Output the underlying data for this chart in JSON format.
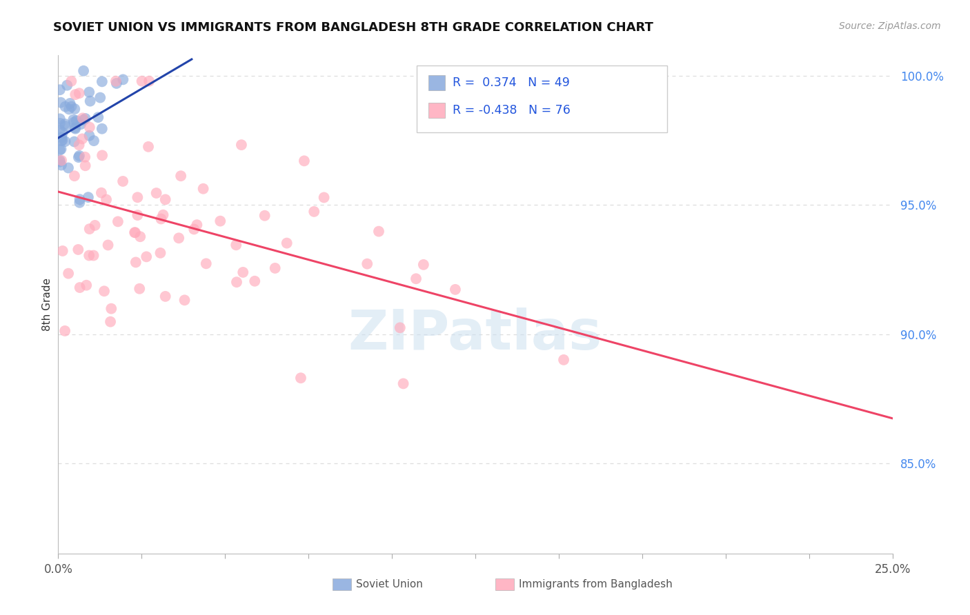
{
  "title": "SOVIET UNION VS IMMIGRANTS FROM BANGLADESH 8TH GRADE CORRELATION CHART",
  "source": "Source: ZipAtlas.com",
  "ylabel": "8th Grade",
  "xlim": [
    0.0,
    0.25
  ],
  "ylim": [
    0.815,
    1.008
  ],
  "xticks": [
    0.0,
    0.025,
    0.05,
    0.075,
    0.1,
    0.125,
    0.15,
    0.175,
    0.2,
    0.225,
    0.25
  ],
  "xticklabels_show": [
    "0.0%",
    "25.0%"
  ],
  "yticks_right": [
    0.85,
    0.9,
    0.95,
    1.0
  ],
  "yticklabels_right": [
    "85.0%",
    "90.0%",
    "95.0%",
    "100.0%"
  ],
  "grid_color": "#dddddd",
  "background_color": "#ffffff",
  "soviet_color": "#88aadd",
  "soviet_line_color": "#2244aa",
  "bangladesh_color": "#ffaabb",
  "bangladesh_line_color": "#ee4466",
  "R_soviet": 0.374,
  "N_soviet": 49,
  "R_bangladesh": -0.438,
  "N_bangladesh": 76,
  "legend_label_soviet": "Soviet Union",
  "legend_label_bangladesh": "Immigrants from Bangladesh",
  "watermark": "ZIPatlas",
  "legend_text_color": "#2255dd",
  "axis_label_color": "#555555"
}
